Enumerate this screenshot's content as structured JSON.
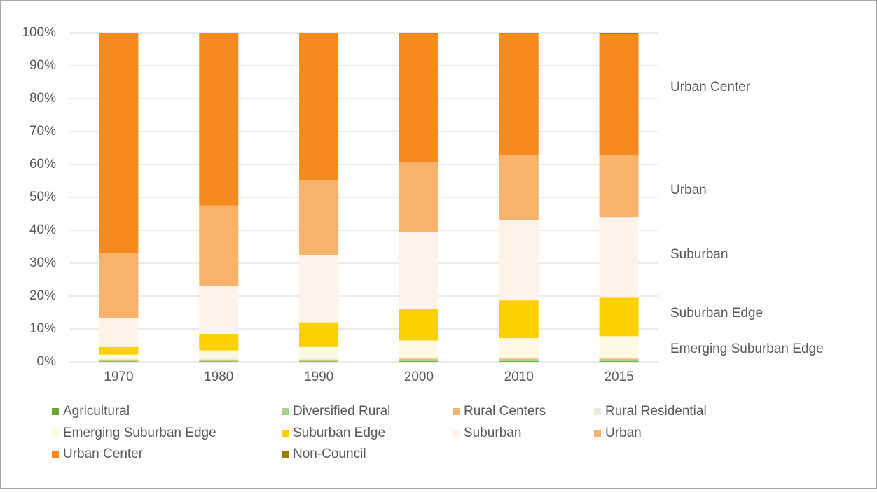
{
  "chart_data": {
    "type": "stacked_bar_100",
    "categories": [
      "1970",
      "1980",
      "1990",
      "2000",
      "2010",
      "2015"
    ],
    "series": [
      {
        "name": "Agricultural",
        "color": "#6aa62e",
        "values": [
          0.1,
          0.1,
          0.1,
          0.2,
          0.2,
          0.2
        ]
      },
      {
        "name": "Diversified Rural",
        "color": "#a9d18e",
        "values": [
          0.2,
          0.2,
          0.2,
          0.5,
          0.5,
          0.5
        ]
      },
      {
        "name": "Rural Centers",
        "color": "#f8b26a",
        "values": [
          0.3,
          0.3,
          0.3,
          0.3,
          0.3,
          0.3
        ]
      },
      {
        "name": "Rural Residential",
        "color": "#e6eedd",
        "values": [
          0.4,
          0.4,
          0.4,
          0.3,
          0.3,
          0.3
        ]
      },
      {
        "name": "Emerging Suburban Edge",
        "color": "#fef9e3",
        "values": [
          1.2,
          2.5,
          3.5,
          5.2,
          5.9,
          6.5
        ]
      },
      {
        "name": "Suburban Edge",
        "color": "#fdd000",
        "values": [
          2.3,
          5.0,
          7.5,
          9.5,
          11.5,
          11.7
        ]
      },
      {
        "name": "Suburban",
        "color": "#fdf3ea",
        "values": [
          8.8,
          14.5,
          20.5,
          23.5,
          24.3,
          24.5
        ]
      },
      {
        "name": "Urban",
        "color": "#f9b26b",
        "values": [
          19.7,
          24.5,
          22.8,
          21.3,
          19.7,
          18.8
        ]
      },
      {
        "name": "Urban Center",
        "color": "#f58b1f",
        "values": [
          67.0,
          52.5,
          44.7,
          39.1,
          37.2,
          37.0
        ]
      },
      {
        "name": "Non-Council",
        "color": "#9b7a00",
        "values": [
          0,
          0,
          0,
          0.1,
          0.1,
          0.2
        ]
      }
    ],
    "ylim": [
      0,
      100
    ],
    "yticks": [
      {
        "value": 0,
        "label": "0%"
      },
      {
        "value": 10,
        "label": "10%"
      },
      {
        "value": 20,
        "label": "20%"
      },
      {
        "value": 30,
        "label": "30%"
      },
      {
        "value": 40,
        "label": "40%"
      },
      {
        "value": 50,
        "label": "50%"
      },
      {
        "value": 60,
        "label": "60%"
      },
      {
        "value": 70,
        "label": "70%"
      },
      {
        "value": 80,
        "label": "80%"
      },
      {
        "value": 90,
        "label": "90%"
      },
      {
        "value": 100,
        "label": "100%"
      }
    ],
    "grid": true,
    "annotations": [
      "Urban Center",
      "Urban",
      "Suburban",
      "Suburban Edge",
      "Emerging Suburban Edge"
    ]
  }
}
